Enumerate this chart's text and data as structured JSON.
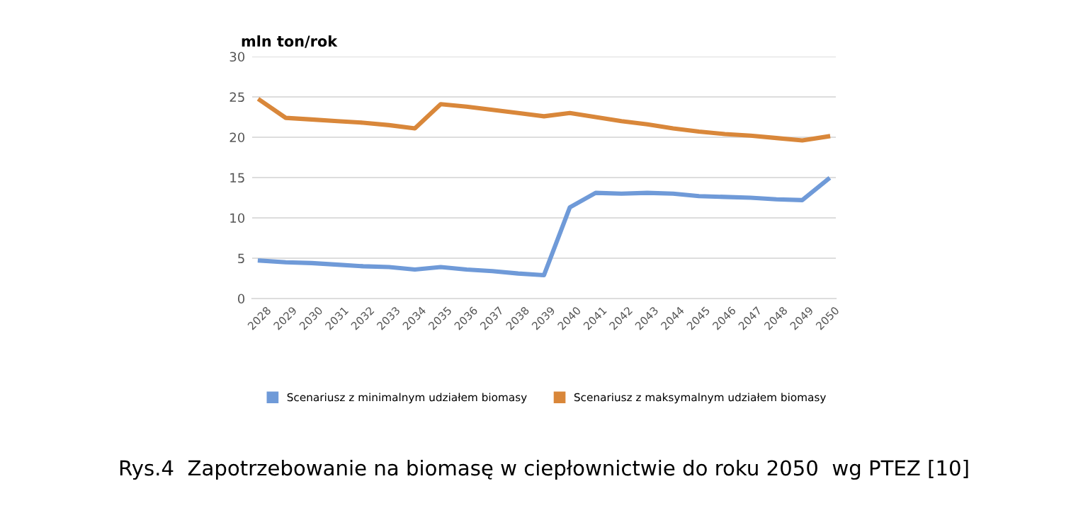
{
  "chart_data": {
    "type": "line",
    "ylabel": "mln ton/rok",
    "categories": [
      "2028",
      "2029",
      "2030",
      "2031",
      "2032",
      "2033",
      "2034",
      "2035",
      "2036",
      "2037",
      "2038",
      "2039",
      "2040",
      "2041",
      "2042",
      "2043",
      "2044",
      "2045",
      "2046",
      "2047",
      "2048",
      "2049",
      "2050"
    ],
    "series": [
      {
        "name": "Scenariusz z minimalnym udziałem biomasy",
        "color": "#6f9ad8",
        "values": [
          4.7,
          4.5,
          4.4,
          4.2,
          4.0,
          3.9,
          3.6,
          3.9,
          3.6,
          3.4,
          3.1,
          2.9,
          11.3,
          13.1,
          13.0,
          13.1,
          13.0,
          12.7,
          12.6,
          12.5,
          12.3,
          12.2,
          14.8
        ]
      },
      {
        "name": "Scenariusz z maksymalnym udziałem biomasy",
        "color": "#d9873a",
        "values": [
          24.6,
          22.4,
          22.2,
          22.0,
          21.8,
          21.5,
          21.1,
          24.1,
          23.8,
          23.4,
          23.0,
          22.6,
          23.0,
          22.5,
          22.0,
          21.6,
          21.1,
          20.7,
          20.4,
          20.2,
          19.9,
          19.6,
          20.1
        ]
      }
    ],
    "ylim": [
      0,
      30
    ],
    "yticks": [
      0,
      5,
      10,
      15,
      20,
      25,
      30
    ],
    "grid": "y",
    "legend": "bottom",
    "marker": "none",
    "line_style": "solid",
    "annotations": [
      "Rys.4  Zapotrzebowanie na biomasę w ciepłownictwie do roku 2050  wg PTEZ [10]"
    ]
  }
}
